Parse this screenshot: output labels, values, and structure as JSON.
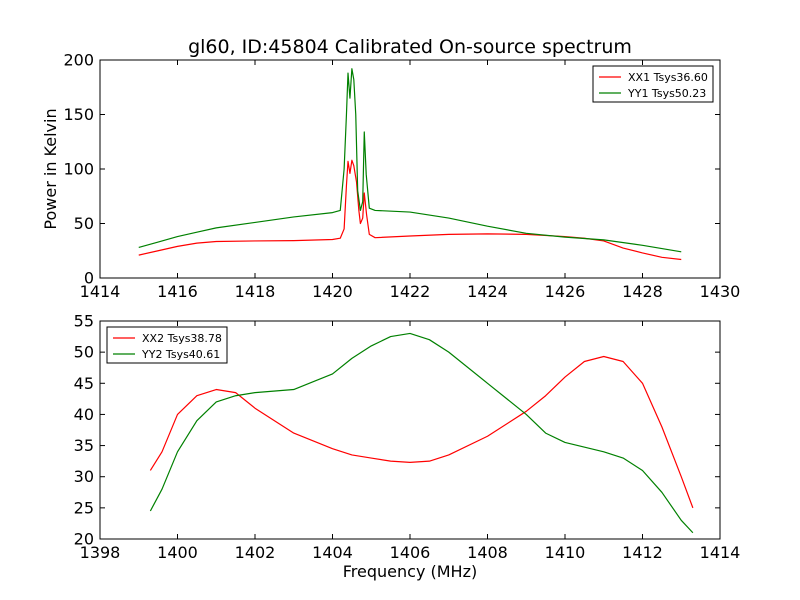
{
  "title": "gl60, ID:45804 Calibrated On-source spectrum",
  "chart_data": [
    {
      "type": "line",
      "ylabel": "Power in Kelvin",
      "xlabel": "",
      "xlim": [
        1414,
        1430
      ],
      "ylim": [
        0,
        200
      ],
      "xticks": [
        "1414",
        "1416",
        "1418",
        "1420",
        "1422",
        "1424",
        "1426",
        "1428",
        "1430"
      ],
      "yticks": [
        "0",
        "50",
        "100",
        "150",
        "200"
      ],
      "legend_position": "top-right",
      "grid": false,
      "series": [
        {
          "name": "XX1 Tsys36.60",
          "color": "#ff0000",
          "points": [
            [
              1415.0,
              21
            ],
            [
              1415.5,
              25
            ],
            [
              1416.0,
              29
            ],
            [
              1416.5,
              32
            ],
            [
              1417.0,
              33.5
            ],
            [
              1418.0,
              34
            ],
            [
              1419.0,
              34.3
            ],
            [
              1420.0,
              35.3
            ],
            [
              1420.2,
              36.5
            ],
            [
              1420.3,
              45
            ],
            [
              1420.36,
              85
            ],
            [
              1420.4,
              107
            ],
            [
              1420.45,
              96
            ],
            [
              1420.5,
              108
            ],
            [
              1420.55,
              103
            ],
            [
              1420.62,
              88
            ],
            [
              1420.68,
              62
            ],
            [
              1420.72,
              50
            ],
            [
              1420.78,
              55
            ],
            [
              1420.82,
              78
            ],
            [
              1420.88,
              58
            ],
            [
              1420.95,
              40
            ],
            [
              1421.1,
              37
            ],
            [
              1422.0,
              38.5
            ],
            [
              1423.0,
              40
            ],
            [
              1424.0,
              40.5
            ],
            [
              1425.0,
              40
            ],
            [
              1426.0,
              38
            ],
            [
              1426.5,
              36.5
            ],
            [
              1427.0,
              34
            ],
            [
              1427.5,
              27.5
            ],
            [
              1428.0,
              23
            ],
            [
              1428.5,
              19
            ],
            [
              1429.0,
              17
            ]
          ]
        },
        {
          "name": "YY1 Tsys50.23",
          "color": "#008000",
          "points": [
            [
              1415.0,
              28
            ],
            [
              1415.5,
              33
            ],
            [
              1416.0,
              38
            ],
            [
              1416.5,
              42
            ],
            [
              1417.0,
              46
            ],
            [
              1418.0,
              51
            ],
            [
              1419.0,
              56
            ],
            [
              1420.0,
              60
            ],
            [
              1420.2,
              62
            ],
            [
              1420.3,
              100
            ],
            [
              1420.36,
              150
            ],
            [
              1420.4,
              188
            ],
            [
              1420.45,
              165
            ],
            [
              1420.5,
              192
            ],
            [
              1420.55,
              182
            ],
            [
              1420.6,
              150
            ],
            [
              1420.65,
              80
            ],
            [
              1420.72,
              62
            ],
            [
              1420.78,
              70
            ],
            [
              1420.82,
              134
            ],
            [
              1420.87,
              95
            ],
            [
              1420.95,
              64
            ],
            [
              1421.1,
              62
            ],
            [
              1422.0,
              60.5
            ],
            [
              1423.0,
              55
            ],
            [
              1424.0,
              47.5
            ],
            [
              1425.0,
              41
            ],
            [
              1426.0,
              37.5
            ],
            [
              1427.0,
              35
            ],
            [
              1428.0,
              30
            ],
            [
              1429.0,
              24
            ]
          ]
        }
      ]
    },
    {
      "type": "line",
      "ylabel": "",
      "xlabel": "Frequency (MHz)",
      "xlim": [
        1398,
        1414
      ],
      "ylim": [
        20,
        55
      ],
      "xticks": [
        "1398",
        "1400",
        "1402",
        "1404",
        "1406",
        "1408",
        "1410",
        "1412",
        "1414"
      ],
      "yticks": [
        "20",
        "25",
        "30",
        "35",
        "40",
        "45",
        "50",
        "55"
      ],
      "legend_position": "top-left",
      "grid": false,
      "series": [
        {
          "name": "XX2 Tsys38.78",
          "color": "#ff0000",
          "points": [
            [
              1399.3,
              31
            ],
            [
              1399.6,
              34
            ],
            [
              1400.0,
              40
            ],
            [
              1400.5,
              43
            ],
            [
              1401.0,
              44
            ],
            [
              1401.5,
              43.5
            ],
            [
              1402.0,
              41
            ],
            [
              1403.0,
              37
            ],
            [
              1404.0,
              34.5
            ],
            [
              1404.5,
              33.5
            ],
            [
              1405.0,
              33
            ],
            [
              1405.5,
              32.5
            ],
            [
              1406.0,
              32.3
            ],
            [
              1406.5,
              32.5
            ],
            [
              1407.0,
              33.5
            ],
            [
              1408.0,
              36.5
            ],
            [
              1409.0,
              40.5
            ],
            [
              1409.5,
              43
            ],
            [
              1410.0,
              46
            ],
            [
              1410.5,
              48.5
            ],
            [
              1411.0,
              49.3
            ],
            [
              1411.5,
              48.5
            ],
            [
              1412.0,
              45
            ],
            [
              1412.5,
              38
            ],
            [
              1413.0,
              30
            ],
            [
              1413.3,
              25
            ]
          ]
        },
        {
          "name": "YY2 Tsys40.61",
          "color": "#008000",
          "points": [
            [
              1399.3,
              24.5
            ],
            [
              1399.6,
              28
            ],
            [
              1400.0,
              34
            ],
            [
              1400.5,
              39
            ],
            [
              1401.0,
              42
            ],
            [
              1401.5,
              43
            ],
            [
              1402.0,
              43.5
            ],
            [
              1403.0,
              44
            ],
            [
              1404.0,
              46.5
            ],
            [
              1404.5,
              49
            ],
            [
              1405.0,
              51
            ],
            [
              1405.5,
              52.5
            ],
            [
              1406.0,
              53
            ],
            [
              1406.5,
              52
            ],
            [
              1407.0,
              50
            ],
            [
              1408.0,
              45
            ],
            [
              1409.0,
              40
            ],
            [
              1409.5,
              37
            ],
            [
              1410.0,
              35.5
            ],
            [
              1411.0,
              34
            ],
            [
              1411.5,
              33
            ],
            [
              1412.0,
              31
            ],
            [
              1412.5,
              27.5
            ],
            [
              1413.0,
              23
            ],
            [
              1413.3,
              21
            ]
          ]
        }
      ]
    }
  ]
}
